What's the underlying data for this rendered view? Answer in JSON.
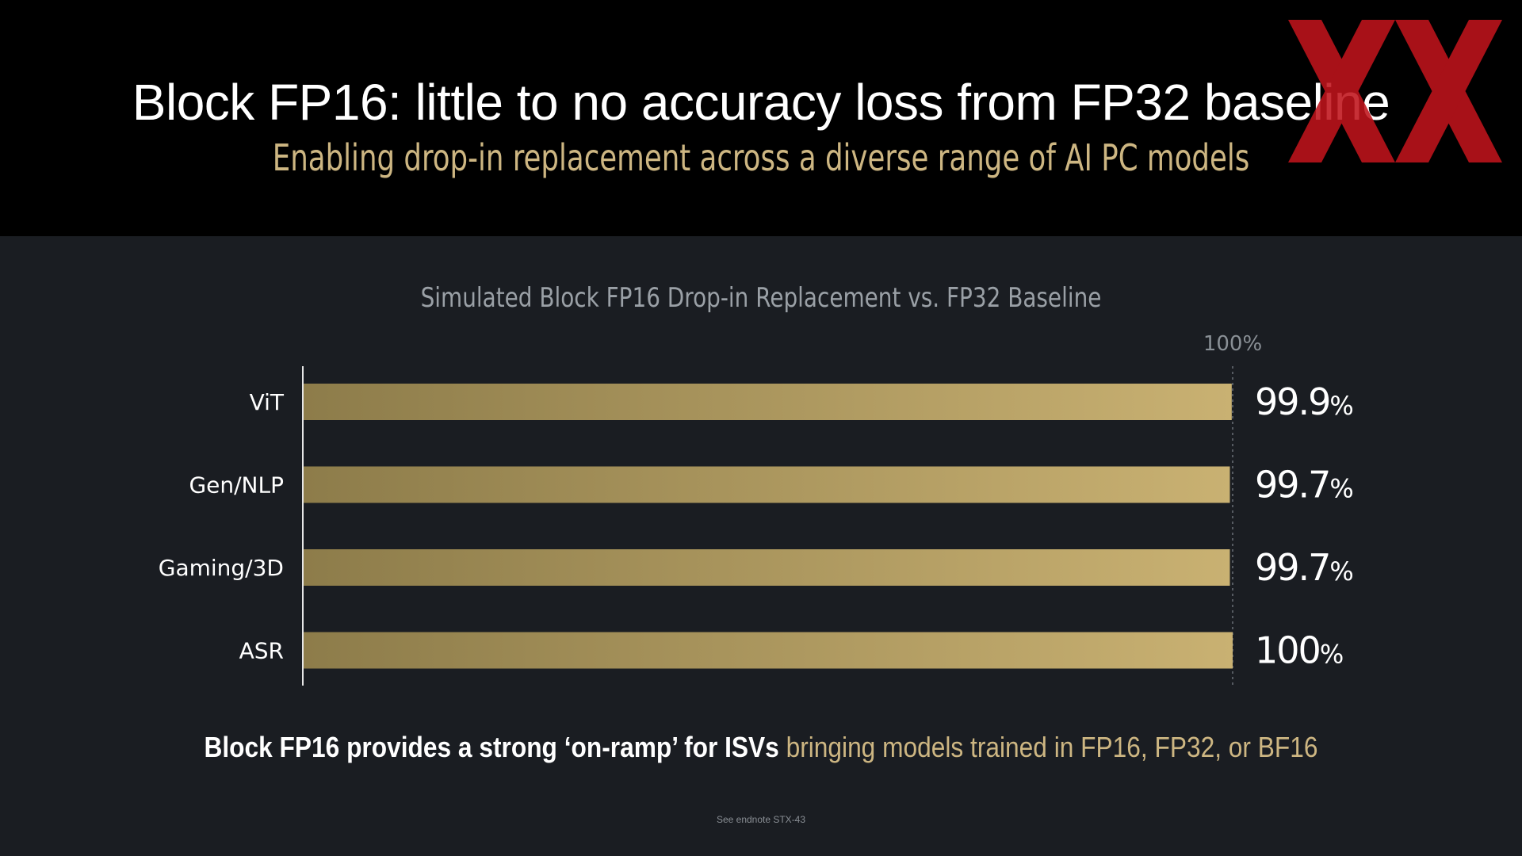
{
  "slide": {
    "title": "Block FP16: little to no accuracy loss from FP32 baseline",
    "subtitle": "Enabling drop-in replacement across a diverse range of AI PC models",
    "footer_strong": "Block FP16 provides a strong ‘on-ramp’ for ISVs",
    "footer_accent": " bringing models trained in FP16, FP32, or BF16",
    "endnote": "See endnote STX-43"
  },
  "colors": {
    "background": "#1a1d22",
    "top_band": "#000000",
    "accent_gold": "#cdb682",
    "bar_gold_light": "#c9b172",
    "bar_gold_dark": "#8d7c4a",
    "watermark_red": "#c0141c"
  },
  "watermark": {
    "icon": "xx-logo-icon"
  },
  "chart_data": {
    "type": "bar",
    "orientation": "horizontal",
    "title": "Simulated Block FP16 Drop-in Replacement vs. FP32 Baseline",
    "categories": [
      "ViT",
      "Gen/NLP",
      "Gaming/3D",
      "ASR"
    ],
    "values": [
      99.9,
      99.7,
      99.7,
      100
    ],
    "value_labels": [
      "99.9",
      "99.7",
      "99.7",
      "100"
    ],
    "value_suffix": "%",
    "reference_line": {
      "value": 100,
      "label": "100%"
    },
    "xlim": [
      0,
      100
    ],
    "grid": false,
    "legend": "none"
  }
}
